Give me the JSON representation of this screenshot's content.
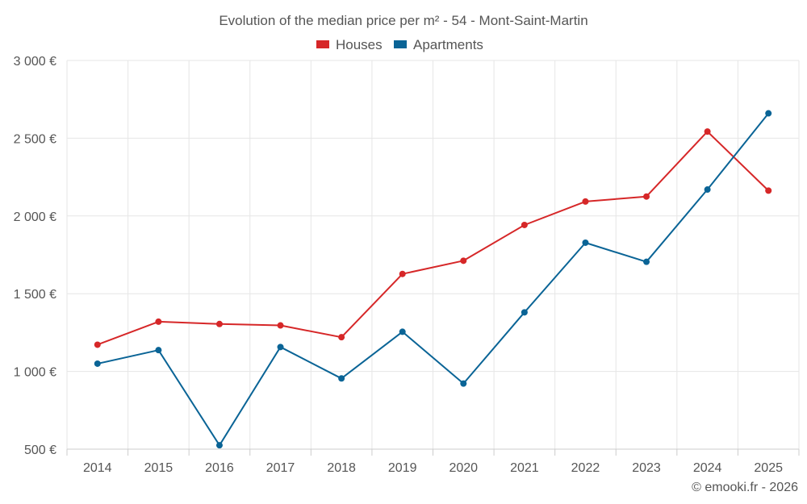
{
  "chart_data": {
    "type": "line",
    "title": "Evolution of the median price per m² - 54 - Mont-Saint-Martin",
    "categories": [
      "2014",
      "2015",
      "2016",
      "2017",
      "2018",
      "2019",
      "2020",
      "2021",
      "2022",
      "2023",
      "2024",
      "2025"
    ],
    "series": [
      {
        "name": "Houses",
        "color": "#d62728",
        "values": [
          1172,
          1320,
          1305,
          1296,
          1220,
          1627,
          1712,
          1942,
          2093,
          2125,
          2543,
          2163
        ]
      },
      {
        "name": "Apartments",
        "color": "#0a6496",
        "values": [
          1050,
          1137,
          525,
          1157,
          955,
          1255,
          922,
          1380,
          1828,
          1705,
          2170,
          2660
        ]
      }
    ],
    "ylim": [
      500,
      3000
    ],
    "yticks": [
      500,
      1000,
      1500,
      2000,
      2500,
      3000
    ],
    "ytick_labels": [
      "500 €",
      "1 000 €",
      "1 500 €",
      "2 000 €",
      "2 500 €",
      "3 000 €"
    ],
    "xlabel": "",
    "ylabel": "",
    "grid": true,
    "legend_position": "top-center"
  },
  "credit": "© emooki.fr - 2026"
}
